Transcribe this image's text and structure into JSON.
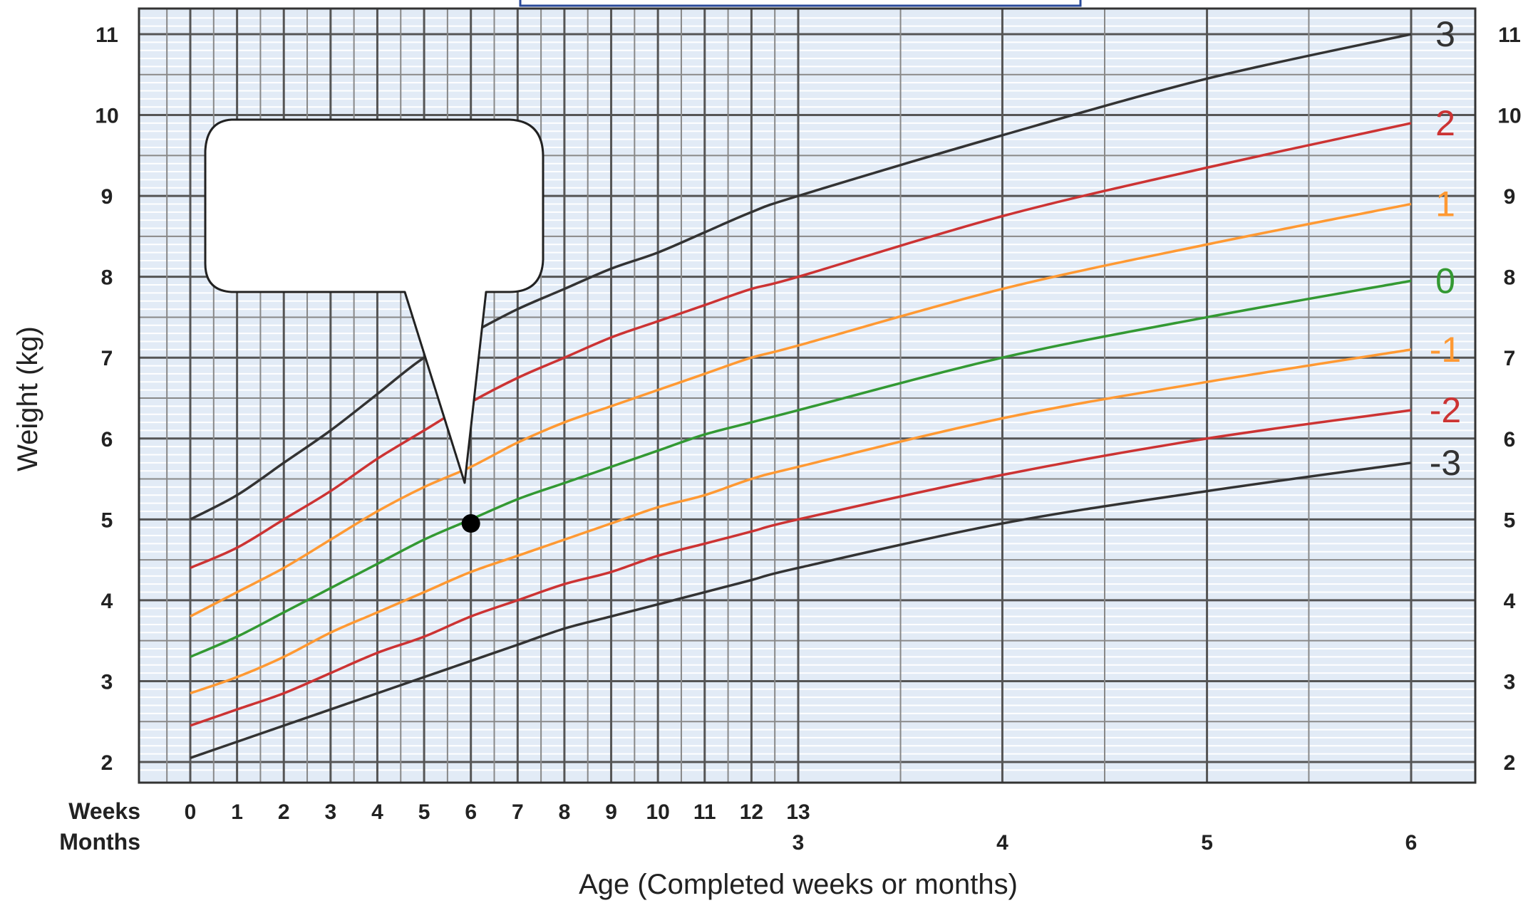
{
  "chart_data": {
    "type": "line",
    "xlabel": "Age (Completed weeks or months)",
    "ylabel": "Weight (kg)",
    "ylim": [
      2,
      11
    ],
    "yticks": [
      2,
      3,
      4,
      5,
      6,
      7,
      8,
      9,
      10,
      11
    ],
    "xlim_weeks": [
      0,
      26
    ],
    "grid": true,
    "x_axis_rows": [
      {
        "label": "Weeks",
        "ticks": [
          {
            "week": 0,
            "label": "0"
          },
          {
            "week": 1,
            "label": "1"
          },
          {
            "week": 2,
            "label": "2"
          },
          {
            "week": 3,
            "label": "3"
          },
          {
            "week": 4,
            "label": "4"
          },
          {
            "week": 5,
            "label": "5"
          },
          {
            "week": 6,
            "label": "6"
          },
          {
            "week": 7,
            "label": "7"
          },
          {
            "week": 8,
            "label": "8"
          },
          {
            "week": 9,
            "label": "9"
          },
          {
            "week": 10,
            "label": "10"
          },
          {
            "week": 11,
            "label": "11"
          },
          {
            "week": 12,
            "label": "12"
          },
          {
            "week": 13,
            "label": "13"
          }
        ]
      },
      {
        "label": "Months",
        "ticks": [
          {
            "week": 13,
            "label": "3"
          },
          {
            "week": 17.33,
            "label": "4"
          },
          {
            "week": 21.67,
            "label": "5"
          },
          {
            "week": 26,
            "label": "6"
          }
        ]
      }
    ],
    "x_weeks": [
      0,
      1,
      2,
      3,
      4,
      5,
      6,
      7,
      8,
      9,
      10,
      11,
      12,
      13,
      17.33,
      21.67,
      26
    ],
    "series": [
      {
        "name": "3",
        "color": "#333333",
        "values": [
          5.0,
          5.3,
          5.7,
          6.1,
          6.55,
          7.0,
          7.3,
          7.6,
          7.85,
          8.1,
          8.3,
          8.55,
          8.8,
          9.0,
          9.75,
          10.45,
          11.0
        ]
      },
      {
        "name": "2",
        "color": "#cc3333",
        "values": [
          4.4,
          4.65,
          5.0,
          5.35,
          5.75,
          6.1,
          6.45,
          6.75,
          7.0,
          7.25,
          7.45,
          7.65,
          7.85,
          8.0,
          8.75,
          9.35,
          9.9
        ]
      },
      {
        "name": "1",
        "color": "#ff9933",
        "values": [
          3.8,
          4.1,
          4.4,
          4.75,
          5.1,
          5.4,
          5.65,
          5.95,
          6.2,
          6.4,
          6.6,
          6.8,
          7.0,
          7.15,
          7.85,
          8.4,
          8.9
        ]
      },
      {
        "name": "0",
        "color": "#339933",
        "values": [
          3.3,
          3.55,
          3.85,
          4.15,
          4.45,
          4.75,
          5.0,
          5.25,
          5.45,
          5.65,
          5.85,
          6.05,
          6.2,
          6.35,
          7.0,
          7.5,
          7.95
        ]
      },
      {
        "name": "-1",
        "color": "#ff9933",
        "values": [
          2.85,
          3.05,
          3.3,
          3.6,
          3.85,
          4.1,
          4.35,
          4.55,
          4.75,
          4.95,
          5.15,
          5.3,
          5.5,
          5.65,
          6.25,
          6.7,
          7.1
        ]
      },
      {
        "name": "-2",
        "color": "#cc3333",
        "values": [
          2.45,
          2.65,
          2.85,
          3.1,
          3.35,
          3.55,
          3.8,
          4.0,
          4.2,
          4.35,
          4.55,
          4.7,
          4.85,
          5.0,
          5.55,
          6.0,
          6.35
        ]
      },
      {
        "name": "-3",
        "color": "#333333",
        "values": [
          2.05,
          2.25,
          2.45,
          2.65,
          2.85,
          3.05,
          3.25,
          3.45,
          3.65,
          3.8,
          3.95,
          4.1,
          4.25,
          4.4,
          4.95,
          5.35,
          5.7
        ]
      }
    ],
    "point": {
      "week": 6,
      "value": 4.95
    },
    "callout_text": ""
  }
}
